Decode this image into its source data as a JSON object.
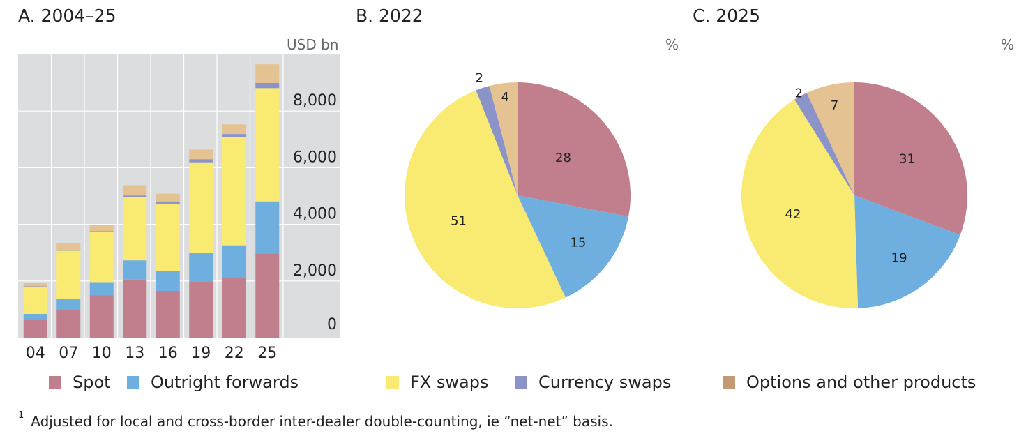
{
  "panels": {
    "a": {
      "title": "A. 2004–25",
      "unit": "USD bn"
    },
    "b": {
      "title": "B. 2022",
      "unit": "%"
    },
    "c": {
      "title": "C. 2025",
      "unit": "%"
    }
  },
  "colors": {
    "spot": "#c17e8c",
    "outright_forwards": "#6fafe0",
    "fx_swaps": "#f9ea72",
    "currency_swaps": "#8b93c9",
    "options": "#e4c292",
    "options_legend": "#c39a72",
    "plot_bg": "#dcdddf"
  },
  "legend": [
    {
      "label": "Spot",
      "key": "spot"
    },
    {
      "label": "Outright forwards",
      "key": "outright_forwards"
    },
    {
      "label": "FX swaps",
      "key": "fx_swaps"
    },
    {
      "label": "Currency swaps",
      "key": "currency_swaps"
    },
    {
      "label": "Options and other products",
      "key": "options_legend"
    }
  ],
  "footnote": {
    "marker": "1",
    "text": "Adjusted for local and cross-border inter-dealer double-counting, ie “net-net” basis."
  },
  "chart_data": [
    {
      "type": "bar",
      "stacked": true,
      "title": "A. 2004–25",
      "ylabel": "USD bn",
      "categories": [
        "04",
        "07",
        "10",
        "13",
        "16",
        "19",
        "22",
        "25"
      ],
      "ylim": [
        0,
        10000
      ],
      "yticks": [
        0,
        2000,
        4000,
        6000,
        8000
      ],
      "ytick_labels": [
        "0",
        "2,000",
        "4,000",
        "6,000",
        "8,000"
      ],
      "grid": true,
      "series": [
        {
          "name": "Spot",
          "key": "spot",
          "values": [
            630,
            1000,
            1490,
            2050,
            1650,
            1990,
            2110,
            2970
          ]
        },
        {
          "name": "Outright forwards",
          "key": "outright_forwards",
          "values": [
            210,
            360,
            470,
            680,
            700,
            1000,
            1150,
            1840
          ]
        },
        {
          "name": "FX swaps",
          "key": "fx_swaps",
          "values": [
            950,
            1710,
            1760,
            2240,
            2380,
            3200,
            3810,
            4000
          ]
        },
        {
          "name": "Currency swaps",
          "key": "currency_swaps",
          "values": [
            20,
            30,
            40,
            50,
            80,
            110,
            120,
            180
          ]
        },
        {
          "name": "Options and other products",
          "key": "options",
          "values": [
            120,
            240,
            210,
            360,
            270,
            340,
            340,
            660
          ]
        }
      ]
    },
    {
      "type": "pie",
      "title": "B. 2022",
      "unit": "%",
      "slices": [
        {
          "name": "Spot",
          "key": "spot",
          "value": 28,
          "label": "28"
        },
        {
          "name": "Outright forwards",
          "key": "outright_forwards",
          "value": 15,
          "label": "15"
        },
        {
          "name": "FX swaps",
          "key": "fx_swaps",
          "value": 51,
          "label": "51"
        },
        {
          "name": "Currency swaps",
          "key": "currency_swaps",
          "value": 2,
          "label": "2"
        },
        {
          "name": "Options and other products",
          "key": "options",
          "value": 4,
          "label": "4"
        }
      ]
    },
    {
      "type": "pie",
      "title": "C. 2025",
      "unit": "%",
      "slices": [
        {
          "name": "Spot",
          "key": "spot",
          "value": 31,
          "label": "31"
        },
        {
          "name": "Outright forwards",
          "key": "outright_forwards",
          "value": 19,
          "label": "19"
        },
        {
          "name": "FX swaps",
          "key": "fx_swaps",
          "value": 42,
          "label": "42"
        },
        {
          "name": "Currency swaps",
          "key": "currency_swaps",
          "value": 2,
          "label": "2"
        },
        {
          "name": "Options and other products",
          "key": "options",
          "value": 7,
          "label": "7"
        }
      ]
    }
  ]
}
